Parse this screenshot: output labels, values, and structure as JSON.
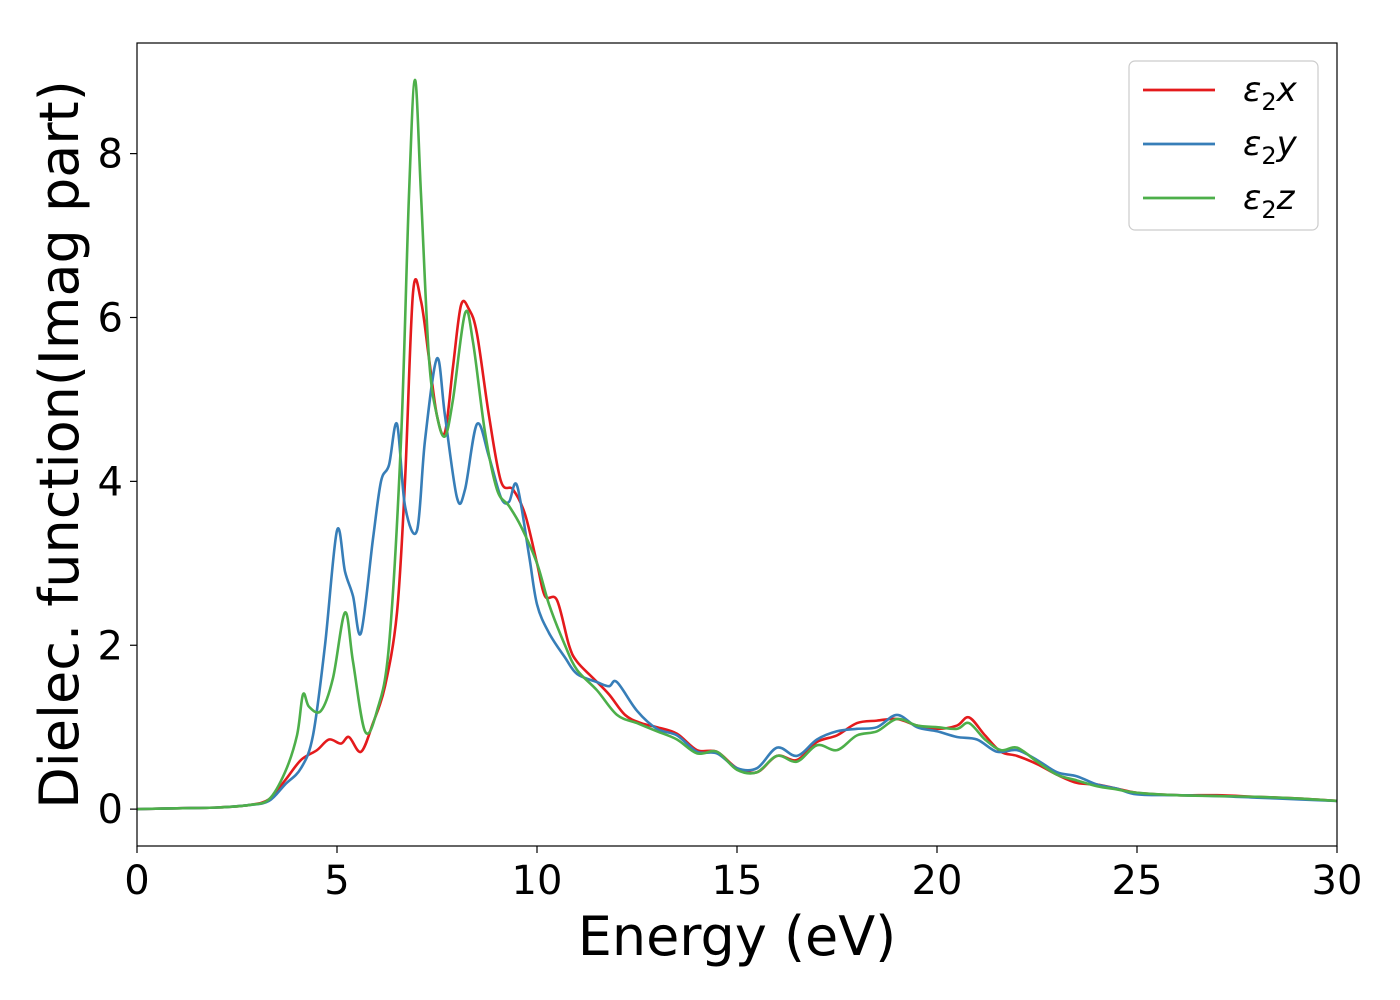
{
  "chart_data": {
    "type": "line",
    "xlabel": "Energy (eV)",
    "ylabel": "Dielec. function(Imag part)",
    "xlim": [
      0,
      30
    ],
    "ylim": [
      -0.45,
      9.35
    ],
    "xticks": [
      0,
      5,
      10,
      15,
      20,
      25,
      30
    ],
    "yticks": [
      0,
      2,
      4,
      6,
      8
    ],
    "grid": false,
    "legend_position": "top-right",
    "series": [
      {
        "name": "ε₂x",
        "legend_main": "ε",
        "legend_sub": "2",
        "legend_suffix": "x",
        "color": "#e41a1c",
        "points": [
          [
            0,
            0
          ],
          [
            1,
            0.01
          ],
          [
            2,
            0.02
          ],
          [
            2.8,
            0.05
          ],
          [
            3.3,
            0.12
          ],
          [
            3.7,
            0.35
          ],
          [
            4.1,
            0.6
          ],
          [
            4.5,
            0.72
          ],
          [
            4.8,
            0.85
          ],
          [
            5.1,
            0.8
          ],
          [
            5.3,
            0.88
          ],
          [
            5.6,
            0.7
          ],
          [
            5.9,
            1.05
          ],
          [
            6.2,
            1.5
          ],
          [
            6.5,
            2.4
          ],
          [
            6.7,
            4.0
          ],
          [
            6.9,
            6.3
          ],
          [
            7.1,
            6.2
          ],
          [
            7.3,
            5.5
          ],
          [
            7.5,
            4.8
          ],
          [
            7.7,
            4.6
          ],
          [
            7.9,
            5.4
          ],
          [
            8.1,
            6.15
          ],
          [
            8.3,
            6.1
          ],
          [
            8.5,
            5.8
          ],
          [
            8.8,
            4.8
          ],
          [
            9.1,
            4.0
          ],
          [
            9.4,
            3.9
          ],
          [
            9.7,
            3.6
          ],
          [
            10.0,
            3.0
          ],
          [
            10.2,
            2.6
          ],
          [
            10.5,
            2.55
          ],
          [
            10.8,
            2.0
          ],
          [
            11.0,
            1.8
          ],
          [
            11.4,
            1.6
          ],
          [
            11.8,
            1.4
          ],
          [
            12.2,
            1.15
          ],
          [
            12.6,
            1.05
          ],
          [
            13.0,
            1.0
          ],
          [
            13.5,
            0.92
          ],
          [
            14.0,
            0.72
          ],
          [
            14.5,
            0.7
          ],
          [
            15.0,
            0.5
          ],
          [
            15.5,
            0.45
          ],
          [
            16.0,
            0.65
          ],
          [
            16.5,
            0.6
          ],
          [
            17.0,
            0.82
          ],
          [
            17.5,
            0.9
          ],
          [
            18.0,
            1.05
          ],
          [
            18.5,
            1.08
          ],
          [
            19.0,
            1.1
          ],
          [
            19.5,
            1.02
          ],
          [
            20.0,
            0.98
          ],
          [
            20.5,
            1.02
          ],
          [
            20.8,
            1.12
          ],
          [
            21.2,
            0.9
          ],
          [
            21.6,
            0.7
          ],
          [
            22.0,
            0.65
          ],
          [
            22.5,
            0.55
          ],
          [
            23.0,
            0.42
          ],
          [
            23.5,
            0.32
          ],
          [
            24.0,
            0.3
          ],
          [
            24.5,
            0.25
          ],
          [
            25.0,
            0.2
          ],
          [
            26.0,
            0.17
          ],
          [
            27.0,
            0.17
          ],
          [
            28.0,
            0.15
          ],
          [
            29.0,
            0.13
          ],
          [
            30.0,
            0.1
          ]
        ]
      },
      {
        "name": "ε₂y",
        "legend_main": "ε",
        "legend_sub": "2",
        "legend_suffix": "y",
        "color": "#377eb8",
        "points": [
          [
            0,
            0
          ],
          [
            1,
            0.01
          ],
          [
            2,
            0.02
          ],
          [
            2.8,
            0.05
          ],
          [
            3.3,
            0.1
          ],
          [
            3.7,
            0.3
          ],
          [
            4.1,
            0.5
          ],
          [
            4.4,
            0.9
          ],
          [
            4.7,
            2.0
          ],
          [
            5.0,
            3.4
          ],
          [
            5.2,
            2.9
          ],
          [
            5.4,
            2.6
          ],
          [
            5.6,
            2.15
          ],
          [
            5.9,
            3.3
          ],
          [
            6.1,
            4.0
          ],
          [
            6.3,
            4.2
          ],
          [
            6.5,
            4.7
          ],
          [
            6.7,
            3.7
          ],
          [
            7.0,
            3.4
          ],
          [
            7.2,
            4.5
          ],
          [
            7.5,
            5.5
          ],
          [
            7.7,
            4.8
          ],
          [
            8.0,
            3.8
          ],
          [
            8.2,
            3.9
          ],
          [
            8.5,
            4.7
          ],
          [
            8.8,
            4.3
          ],
          [
            9.1,
            3.8
          ],
          [
            9.3,
            3.75
          ],
          [
            9.5,
            3.95
          ],
          [
            9.8,
            3.1
          ],
          [
            10.0,
            2.5
          ],
          [
            10.3,
            2.15
          ],
          [
            10.7,
            1.85
          ],
          [
            11.0,
            1.65
          ],
          [
            11.5,
            1.55
          ],
          [
            11.8,
            1.5
          ],
          [
            12.0,
            1.55
          ],
          [
            12.5,
            1.2
          ],
          [
            13.0,
            0.98
          ],
          [
            13.5,
            0.9
          ],
          [
            14.0,
            0.7
          ],
          [
            14.5,
            0.68
          ],
          [
            15.0,
            0.5
          ],
          [
            15.5,
            0.5
          ],
          [
            16.0,
            0.75
          ],
          [
            16.5,
            0.65
          ],
          [
            17.0,
            0.85
          ],
          [
            17.5,
            0.95
          ],
          [
            18.0,
            0.98
          ],
          [
            18.5,
            1.0
          ],
          [
            19.0,
            1.15
          ],
          [
            19.5,
            1.0
          ],
          [
            20.0,
            0.95
          ],
          [
            20.5,
            0.88
          ],
          [
            21.0,
            0.85
          ],
          [
            21.5,
            0.7
          ],
          [
            22.0,
            0.72
          ],
          [
            22.5,
            0.6
          ],
          [
            23.0,
            0.45
          ],
          [
            23.5,
            0.4
          ],
          [
            24.0,
            0.3
          ],
          [
            24.5,
            0.25
          ],
          [
            25.0,
            0.18
          ],
          [
            26.0,
            0.17
          ],
          [
            27.0,
            0.16
          ],
          [
            28.0,
            0.14
          ],
          [
            29.0,
            0.12
          ],
          [
            30.0,
            0.1
          ]
        ]
      },
      {
        "name": "ε₂z",
        "legend_main": "ε",
        "legend_sub": "2",
        "legend_suffix": "z",
        "color": "#4daf4a",
        "points": [
          [
            0,
            0
          ],
          [
            1,
            0.01
          ],
          [
            2,
            0.02
          ],
          [
            2.8,
            0.05
          ],
          [
            3.3,
            0.12
          ],
          [
            3.7,
            0.45
          ],
          [
            4.0,
            0.9
          ],
          [
            4.15,
            1.4
          ],
          [
            4.3,
            1.25
          ],
          [
            4.6,
            1.2
          ],
          [
            4.9,
            1.6
          ],
          [
            5.2,
            2.4
          ],
          [
            5.4,
            1.8
          ],
          [
            5.7,
            0.95
          ],
          [
            6.0,
            1.2
          ],
          [
            6.3,
            2.0
          ],
          [
            6.6,
            4.5
          ],
          [
            6.8,
            7.5
          ],
          [
            6.95,
            8.9
          ],
          [
            7.1,
            7.5
          ],
          [
            7.3,
            5.5
          ],
          [
            7.5,
            4.8
          ],
          [
            7.7,
            4.55
          ],
          [
            7.9,
            5.0
          ],
          [
            8.2,
            6.05
          ],
          [
            8.4,
            5.7
          ],
          [
            8.7,
            4.6
          ],
          [
            9.0,
            3.9
          ],
          [
            9.3,
            3.7
          ],
          [
            9.6,
            3.45
          ],
          [
            10.0,
            3.0
          ],
          [
            10.3,
            2.5
          ],
          [
            10.7,
            2.0
          ],
          [
            11.0,
            1.7
          ],
          [
            11.5,
            1.45
          ],
          [
            12.0,
            1.15
          ],
          [
            12.5,
            1.05
          ],
          [
            13.0,
            0.95
          ],
          [
            13.5,
            0.85
          ],
          [
            14.0,
            0.68
          ],
          [
            14.5,
            0.7
          ],
          [
            15.0,
            0.48
          ],
          [
            15.5,
            0.45
          ],
          [
            16.0,
            0.65
          ],
          [
            16.5,
            0.58
          ],
          [
            17.0,
            0.78
          ],
          [
            17.5,
            0.72
          ],
          [
            18.0,
            0.9
          ],
          [
            18.5,
            0.95
          ],
          [
            19.0,
            1.1
          ],
          [
            19.5,
            1.02
          ],
          [
            20.0,
            1.0
          ],
          [
            20.5,
            0.98
          ],
          [
            20.8,
            1.05
          ],
          [
            21.2,
            0.85
          ],
          [
            21.6,
            0.72
          ],
          [
            22.0,
            0.75
          ],
          [
            22.5,
            0.58
          ],
          [
            23.0,
            0.42
          ],
          [
            23.5,
            0.35
          ],
          [
            24.0,
            0.28
          ],
          [
            24.5,
            0.24
          ],
          [
            25.0,
            0.2
          ],
          [
            26.0,
            0.17
          ],
          [
            27.0,
            0.16
          ],
          [
            28.0,
            0.15
          ],
          [
            29.0,
            0.13
          ],
          [
            30.0,
            0.1
          ]
        ]
      }
    ]
  }
}
